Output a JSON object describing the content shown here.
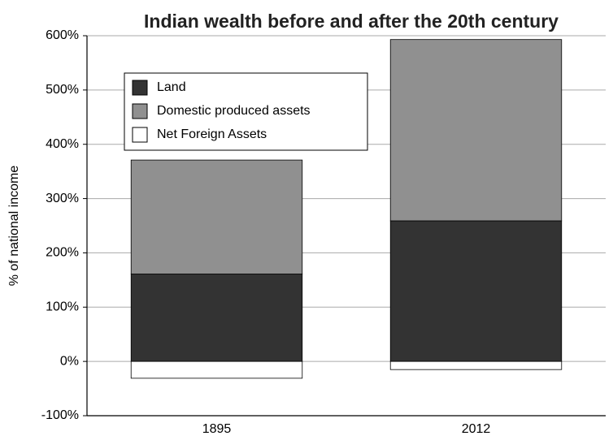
{
  "chart_data": {
    "type": "stacked_bar",
    "title": "Indian wealth before and after the 20th century",
    "y_label": "% of national income",
    "categories": [
      "1895",
      "2012"
    ],
    "series": [
      {
        "name": "Land",
        "color": "#333333",
        "values": [
          161,
          259
        ]
      },
      {
        "name": "Domestic produced assets",
        "color": "#909090",
        "values": [
          210,
          334
        ]
      },
      {
        "name": "Net Foreign Assets",
        "color": "#ffffff",
        "values": [
          -31,
          -15
        ]
      }
    ],
    "ylim": [
      -100,
      600
    ],
    "yticks": [
      {
        "value": -100,
        "label": "-100%"
      },
      {
        "value": 0,
        "label": "0%"
      },
      {
        "value": 100,
        "label": "100%"
      },
      {
        "value": 200,
        "label": "200%"
      },
      {
        "value": 300,
        "label": "300%"
      },
      {
        "value": 400,
        "label": "400%"
      },
      {
        "value": 500,
        "label": "500%"
      },
      {
        "value": 600,
        "label": "600%"
      }
    ],
    "grid": true,
    "legend": "upper left"
  }
}
